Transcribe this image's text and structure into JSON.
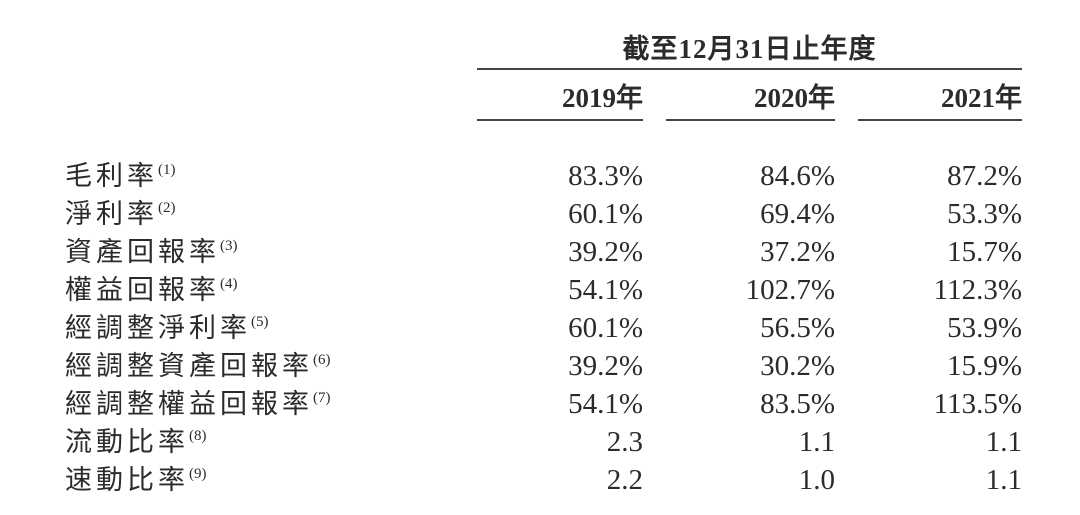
{
  "table": {
    "period_header": "截至12月31日止年度",
    "columns": [
      "2019年",
      "2020年",
      "2021年"
    ],
    "rows": [
      {
        "label": "毛利率",
        "note": "(1)",
        "values": [
          "83.3%",
          "84.6%",
          "87.2%"
        ]
      },
      {
        "label": "淨利率",
        "note": "(2)",
        "values": [
          "60.1%",
          "69.4%",
          "53.3%"
        ]
      },
      {
        "label": "資產回報率",
        "note": "(3)",
        "values": [
          "39.2%",
          "37.2%",
          "15.7%"
        ]
      },
      {
        "label": "權益回報率",
        "note": "(4)",
        "values": [
          "54.1%",
          "102.7%",
          "112.3%"
        ]
      },
      {
        "label": "經調整淨利率",
        "note": "(5)",
        "values": [
          "60.1%",
          "56.5%",
          "53.9%"
        ]
      },
      {
        "label": "經調整資產回報率",
        "note": "(6)",
        "values": [
          "39.2%",
          "30.2%",
          "15.9%"
        ]
      },
      {
        "label": "經調整權益回報率",
        "note": "(7)",
        "values": [
          "54.1%",
          "83.5%",
          "113.5%"
        ]
      },
      {
        "label": "流動比率",
        "note": "(8)",
        "values": [
          "2.3",
          "1.1",
          "1.1"
        ]
      },
      {
        "label": "速動比率",
        "note": "(9)",
        "values": [
          "2.2",
          "1.0",
          "1.1"
        ]
      }
    ],
    "colors": {
      "text": "#2b2b2b",
      "rule": "#454545",
      "background": "#ffffff"
    }
  }
}
